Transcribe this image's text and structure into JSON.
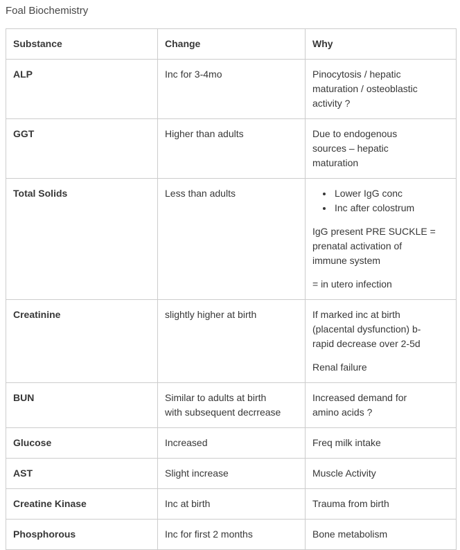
{
  "page": {
    "title": "Foal Biochemistry",
    "background_color": "#ffffff",
    "text_color": "#373737",
    "border_color": "#cccccc"
  },
  "table": {
    "columns": [
      "Substance",
      "Change",
      "Why"
    ],
    "rows": [
      {
        "substance": "ALP",
        "change": "Inc for 3-4mo",
        "why_paragraphs": [
          "Pinocytosis / hepatic\nmaturation / osteoblastic\nactivity ?"
        ]
      },
      {
        "substance": "GGT",
        "change": "Higher than adults",
        "why_paragraphs": [
          "Due to endogenous\nsources – hepatic\nmaturation"
        ]
      },
      {
        "substance": "Total Solids",
        "change": "Less than adults",
        "why_bullets": [
          "Lower IgG conc",
          "Inc after colostrum"
        ],
        "why_paragraphs": [
          "IgG present PRE SUCKLE =\nprenatal activation of\nimmune system",
          "= in utero infection"
        ]
      },
      {
        "substance": "Creatinine",
        "change": "slightly higher at birth",
        "why_paragraphs": [
          "If marked inc at birth\n(placental dysfunction) b-\nrapid decrease over 2-5d",
          "Renal failure"
        ]
      },
      {
        "substance": "BUN",
        "change": "Similar to adults at birth\nwith subsequent decrrease",
        "why_paragraphs": [
          "Increased demand for\namino acids ?"
        ]
      },
      {
        "substance": "Glucose",
        "change": "Increased",
        "why_paragraphs": [
          "Freq milk intake"
        ]
      },
      {
        "substance": "AST",
        "change": "Slight increase",
        "why_paragraphs": [
          "Muscle Activity"
        ]
      },
      {
        "substance": "Creatine Kinase",
        "change": "Inc at birth",
        "why_paragraphs": [
          "Trauma from birth"
        ]
      },
      {
        "substance": "Phosphorous",
        "change": "Inc for first 2 months",
        "why_paragraphs": [
          "Bone metabolism"
        ]
      }
    ]
  }
}
